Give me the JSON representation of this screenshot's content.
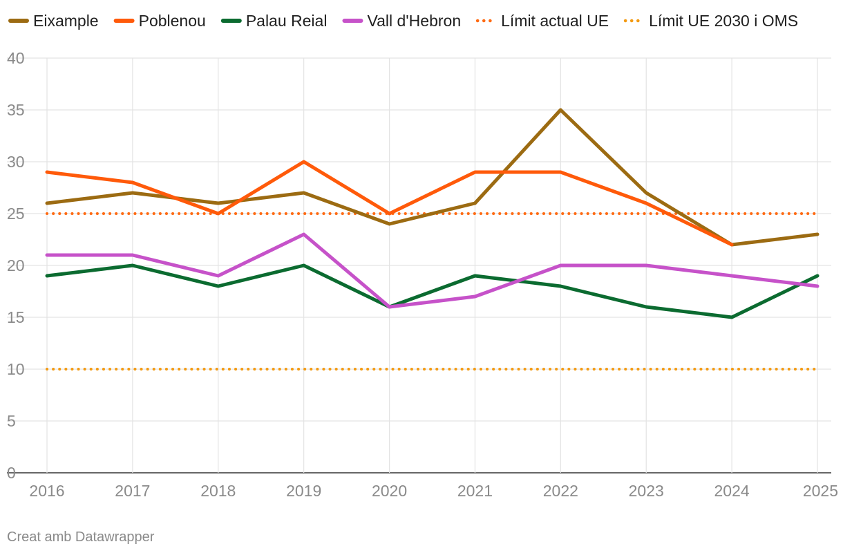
{
  "chart_data": {
    "type": "line",
    "title": "",
    "xlabel": "",
    "ylabel": "",
    "x": [
      2016,
      2017,
      2018,
      2019,
      2020,
      2021,
      2022,
      2023,
      2024,
      2025
    ],
    "x_tick_labels": [
      "2016",
      "2017",
      "2018",
      "2019",
      "2020",
      "2021",
      "2022",
      "2023",
      "2024",
      "2025"
    ],
    "ylim": [
      0,
      40
    ],
    "y_ticks": [
      0,
      5,
      10,
      15,
      20,
      25,
      30,
      35,
      40
    ],
    "y_tick_labels": [
      "0",
      "5",
      "10",
      "15",
      "20",
      "25",
      "30",
      "35",
      "40"
    ],
    "grid": true,
    "legend_position": "top",
    "series": [
      {
        "name": "Eixample",
        "color": "#9c6b12",
        "style": "solid",
        "values": [
          26,
          27,
          26,
          27,
          24,
          26,
          35,
          27,
          22,
          23
        ]
      },
      {
        "name": "Poblenou",
        "color": "#ff5a0a",
        "style": "solid",
        "values": [
          29,
          28,
          25,
          30,
          25,
          29,
          29,
          26,
          22,
          null
        ]
      },
      {
        "name": "Palau Reial",
        "color": "#0b6b30",
        "style": "solid",
        "values": [
          19,
          20,
          18,
          20,
          16,
          19,
          18,
          16,
          15,
          19
        ]
      },
      {
        "name": "Vall d'Hebron",
        "color": "#c652c9",
        "style": "solid",
        "values": [
          21,
          21,
          19,
          23,
          16,
          17,
          20,
          20,
          19,
          18
        ]
      }
    ],
    "reference_lines": [
      {
        "name": "Límit actual UE",
        "color": "#ff6a12",
        "style": "dotted",
        "value": 25
      },
      {
        "name": "Límit UE 2030 i OMS",
        "color": "#f39a12",
        "style": "dotted",
        "value": 10
      }
    ]
  },
  "legend_order": [
    "Eixample",
    "Poblenou",
    "Palau Reial",
    "Vall d'Hebron",
    "Límit actual UE",
    "Límit UE 2030 i OMS"
  ],
  "footer": {
    "credit": "Creat amb Datawrapper"
  }
}
